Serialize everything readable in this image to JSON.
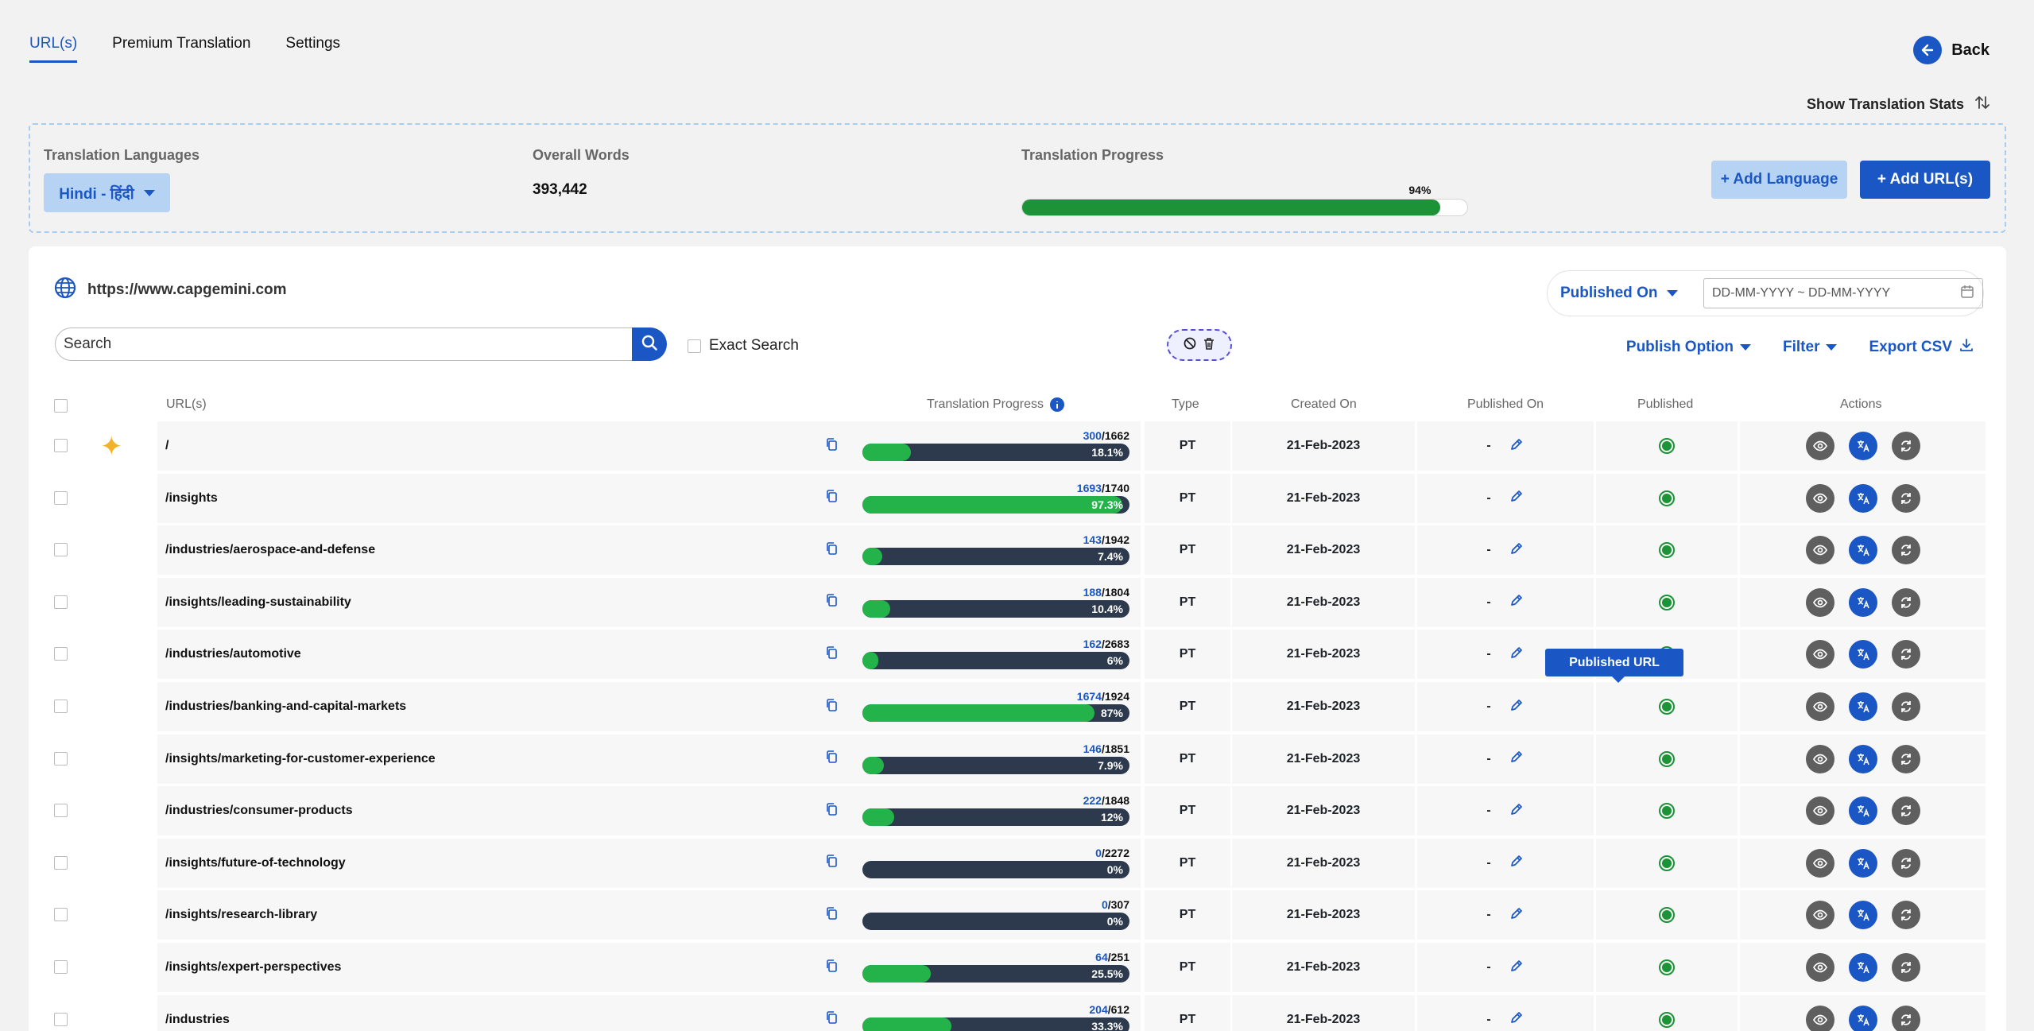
{
  "tabs": [
    {
      "label": "URL(s)",
      "active": true
    },
    {
      "label": "Premium Translation",
      "active": false
    },
    {
      "label": "Settings",
      "active": false
    }
  ],
  "back_label": "Back",
  "stats_toggle_label": "Show Translation Stats",
  "summary": {
    "languages_label": "Translation Languages",
    "language_selected": "Hindi - हिंदी",
    "words_label": "Overall Words",
    "words_value": "393,442",
    "progress_label": "Translation Progress",
    "progress_pct_text": "94%",
    "progress_value": 94,
    "add_language_label": "+ Add Language",
    "add_urls_label": "+ Add URL(s)"
  },
  "site_url": "https://www.capgemini.com",
  "date_filter": {
    "label": "Published On",
    "placeholder": "DD-MM-YYYY ~ DD-MM-YYYY"
  },
  "search": {
    "placeholder": "Search"
  },
  "exact_search_label": "Exact Search",
  "tools": {
    "publish_option": "Publish Option",
    "filter": "Filter",
    "export_csv": "Export CSV"
  },
  "table": {
    "headers": {
      "urls": "URL(s)",
      "progress": "Translation Progress",
      "type": "Type",
      "created_on": "Created On",
      "published_on": "Published On",
      "published": "Published",
      "actions": "Actions"
    },
    "tooltip": "Published URL",
    "rows": [
      {
        "url": "/",
        "done": "300",
        "total": "/1662",
        "pct_text": "18.1%",
        "pct": 18.1,
        "type": "PT",
        "created": "21-Feb-2023",
        "published_on": "-"
      },
      {
        "url": "/insights",
        "done": "1693",
        "total": "/1740",
        "pct_text": "97.3%",
        "pct": 97.3,
        "type": "PT",
        "created": "21-Feb-2023",
        "published_on": "-"
      },
      {
        "url": "/industries/aerospace-and-defense",
        "done": "143",
        "total": "/1942",
        "pct_text": "7.4%",
        "pct": 7.4,
        "type": "PT",
        "created": "21-Feb-2023",
        "published_on": "-"
      },
      {
        "url": "/insights/leading-sustainability",
        "done": "188",
        "total": "/1804",
        "pct_text": "10.4%",
        "pct": 10.4,
        "type": "PT",
        "created": "21-Feb-2023",
        "published_on": "-"
      },
      {
        "url": "/industries/automotive",
        "done": "162",
        "total": "/2683",
        "pct_text": "6%",
        "pct": 6,
        "type": "PT",
        "created": "21-Feb-2023",
        "published_on": "-"
      },
      {
        "url": "/industries/banking-and-capital-markets",
        "done": "1674",
        "total": "/1924",
        "pct_text": "87%",
        "pct": 87,
        "type": "PT",
        "created": "21-Feb-2023",
        "published_on": "-"
      },
      {
        "url": "/insights/marketing-for-customer-experience",
        "done": "146",
        "total": "/1851",
        "pct_text": "7.9%",
        "pct": 7.9,
        "type": "PT",
        "created": "21-Feb-2023",
        "published_on": "-"
      },
      {
        "url": "/industries/consumer-products",
        "done": "222",
        "total": "/1848",
        "pct_text": "12%",
        "pct": 12,
        "type": "PT",
        "created": "21-Feb-2023",
        "published_on": "-"
      },
      {
        "url": "/insights/future-of-technology",
        "done": "0",
        "total": "/2272",
        "pct_text": "0%",
        "pct": 0,
        "type": "PT",
        "created": "21-Feb-2023",
        "published_on": "-"
      },
      {
        "url": "/insights/research-library",
        "done": "0",
        "total": "/307",
        "pct_text": "0%",
        "pct": 0,
        "type": "PT",
        "created": "21-Feb-2023",
        "published_on": "-"
      },
      {
        "url": "/insights/expert-perspectives",
        "done": "64",
        "total": "/251",
        "pct_text": "25.5%",
        "pct": 25.5,
        "type": "PT",
        "created": "21-Feb-2023",
        "published_on": "-"
      },
      {
        "url": "/industries",
        "done": "204",
        "total": "/612",
        "pct_text": "33.3%",
        "pct": 33.3,
        "type": "PT",
        "created": "21-Feb-2023",
        "published_on": "-"
      }
    ]
  },
  "colors": {
    "accent": "#1a56c4",
    "success": "#1c9337",
    "bar_fill": "#24b34a",
    "bar_track": "#2d3a4d"
  }
}
